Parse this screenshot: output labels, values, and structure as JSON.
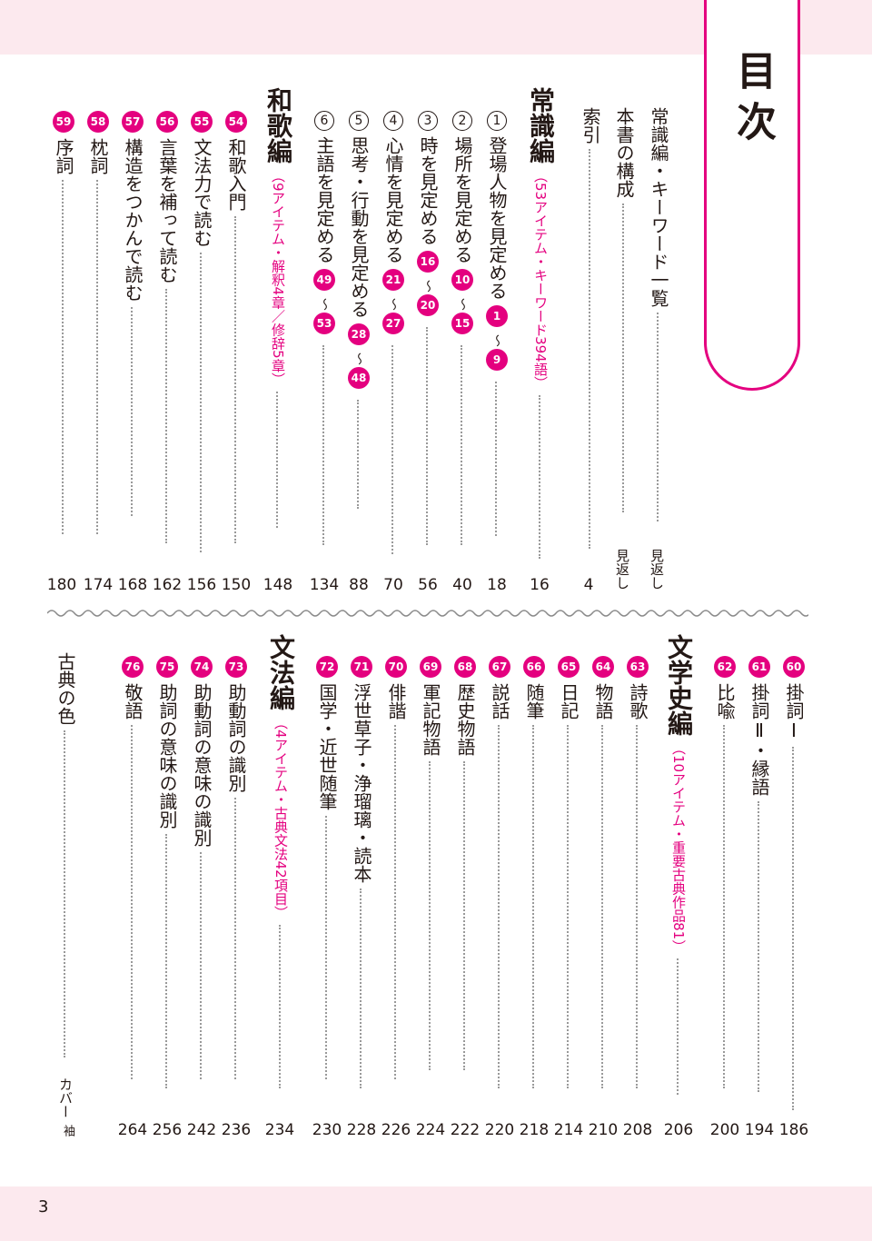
{
  "title": "目次",
  "page_number": "3",
  "colors": {
    "accent": "#e4007f",
    "band": "#fce9ee"
  },
  "top": {
    "intro": [
      {
        "title": "常識編・キーワード一覧",
        "page": "見返し"
      },
      {
        "title": "本書の構成",
        "page": "見返し"
      },
      {
        "title": "索引",
        "page": "4"
      }
    ],
    "joshiki": {
      "heading": "常識編",
      "sub": "（53アイテム・キーワード394語）",
      "page": "16",
      "items": [
        {
          "num": "1",
          "title": "登場人物を見定める",
          "from": "1",
          "to": "9",
          "page": "18"
        },
        {
          "num": "2",
          "title": "場所を見定める",
          "from": "10",
          "to": "15",
          "page": "40"
        },
        {
          "num": "3",
          "title": "時を見定める",
          "from": "16",
          "to": "20",
          "page": "56"
        },
        {
          "num": "4",
          "title": "心情を見定める",
          "from": "21",
          "to": "27",
          "page": "70"
        },
        {
          "num": "5",
          "title": "思考・行動を見定める",
          "from": "28",
          "to": "48",
          "page": "88"
        },
        {
          "num": "6",
          "title": "主語を見定める",
          "from": "49",
          "to": "53",
          "page": "134"
        }
      ]
    },
    "waka": {
      "heading": "和歌編",
      "sub": "（9アイテム・解釈4章／修辞5章）",
      "page": "148",
      "items": [
        {
          "num": "54",
          "title": "和歌入門",
          "page": "150"
        },
        {
          "num": "55",
          "title": "文法力で読む",
          "page": "156"
        },
        {
          "num": "56",
          "title": "言葉を補って読む",
          "page": "162"
        },
        {
          "num": "57",
          "title": "構造をつかんで読む",
          "page": "168"
        },
        {
          "num": "58",
          "title": "枕詞",
          "page": "174"
        },
        {
          "num": "59",
          "title": "序詞",
          "page": "180"
        }
      ]
    }
  },
  "bottom": {
    "waka_cont": [
      {
        "num": "60",
        "title": "掛詞Ⅰ",
        "page": "186"
      },
      {
        "num": "61",
        "title": "掛詞Ⅱ・縁語",
        "page": "194"
      },
      {
        "num": "62",
        "title": "比喩",
        "page": "200"
      }
    ],
    "bungakushi": {
      "heading": "文学史編",
      "sub": "（10アイテム・重要古典作品81）",
      "page": "206",
      "items": [
        {
          "num": "63",
          "title": "詩歌",
          "page": "208"
        },
        {
          "num": "64",
          "title": "物語",
          "page": "210"
        },
        {
          "num": "65",
          "title": "日記",
          "page": "214"
        },
        {
          "num": "66",
          "title": "随筆",
          "page": "218"
        },
        {
          "num": "67",
          "title": "説話",
          "page": "220"
        },
        {
          "num": "68",
          "title": "歴史物語",
          "page": "222"
        },
        {
          "num": "69",
          "title": "軍記物語",
          "page": "224"
        },
        {
          "num": "70",
          "title": "俳諧",
          "page": "226"
        },
        {
          "num": "71",
          "title": "浮世草子・浄瑠璃・読本",
          "page": "228"
        },
        {
          "num": "72",
          "title": "国学・近世随筆",
          "page": "230"
        }
      ]
    },
    "bunpo": {
      "heading": "文法編",
      "sub": "（4アイテム・古典文法42項目）",
      "page": "234",
      "items": [
        {
          "num": "73",
          "title": "助動詞の識別",
          "page": "236"
        },
        {
          "num": "74",
          "title": "助動詞の意味の識別",
          "page": "242"
        },
        {
          "num": "75",
          "title": "助詞の意味の識別",
          "page": "256"
        },
        {
          "num": "76",
          "title": "敬語",
          "page": "264"
        }
      ]
    },
    "koten": {
      "title": "古典の色",
      "page_main": "カバー",
      "page_small": "袖"
    }
  }
}
